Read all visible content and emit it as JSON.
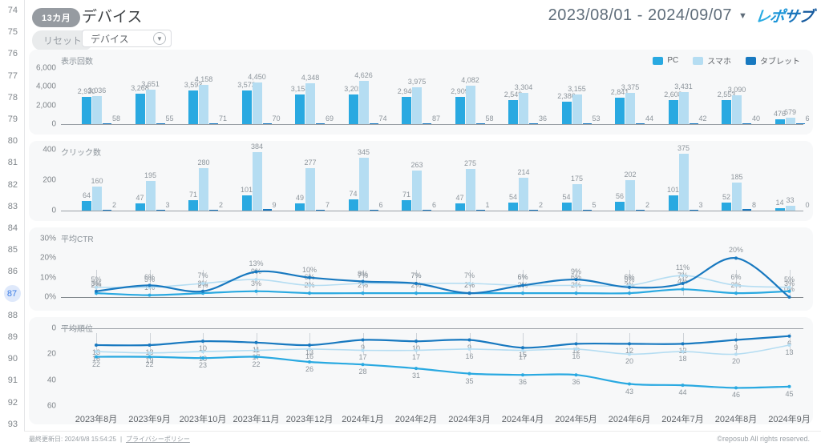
{
  "sidebar": {
    "numbers": [
      "74",
      "75",
      "76",
      "77",
      "78",
      "79",
      "80",
      "81",
      "82",
      "83",
      "84",
      "85",
      "86",
      "87",
      "88",
      "89",
      "90",
      "91",
      "92",
      "93"
    ],
    "active_number": "87"
  },
  "header": {
    "badge": "13カ月",
    "title": "デバイス",
    "date_range": "2023/08/01 - 2024/09/07",
    "logo": "レポサブ"
  },
  "toolbar": {
    "reset_label": "リセット",
    "filter_value": "デバイス"
  },
  "months": [
    "2023年8月",
    "2023年9月",
    "2023年10月",
    "2023年11月",
    "2023年12月",
    "2024年1月",
    "2024年2月",
    "2024年3月",
    "2024年4月",
    "2024年5月",
    "2024年6月",
    "2024年7月",
    "2024年8月",
    "2024年9月"
  ],
  "chart_data": [
    {
      "type": "bar",
      "title": "表示回数",
      "ylim": [
        0,
        6000
      ],
      "yticks": [
        "6,000",
        "4,000",
        "2,000",
        "0"
      ],
      "legend": [
        "PC",
        "スマホ",
        "タブレット"
      ],
      "value_format": "comma",
      "series": [
        {
          "name": "PC",
          "color": "#29a9e1",
          "values": [
            2930,
            3268,
            3593,
            3573,
            3158,
            3201,
            2940,
            2909,
            2549,
            2386,
            2841,
            2608,
            2553,
            476
          ]
        },
        {
          "name": "スマホ",
          "color": "#b5ddf2",
          "values": [
            3036,
            3651,
            4158,
            4450,
            4348,
            4626,
            3975,
            4082,
            3304,
            3155,
            3375,
            3431,
            3090,
            679
          ]
        },
        {
          "name": "タブレット",
          "color": "#1879c0",
          "values": [
            58,
            55,
            71,
            70,
            69,
            74,
            87,
            58,
            36,
            53,
            44,
            42,
            40,
            6
          ]
        }
      ]
    },
    {
      "type": "bar",
      "title": "クリック数",
      "ylim": [
        0,
        400
      ],
      "yticks": [
        "400",
        "200",
        "0"
      ],
      "value_format": "plain",
      "series": [
        {
          "name": "PC",
          "color": "#29a9e1",
          "values": [
            64,
            47,
            71,
            101,
            49,
            74,
            71,
            47,
            54,
            54,
            56,
            101,
            52,
            14
          ]
        },
        {
          "name": "スマホ",
          "color": "#b5ddf2",
          "values": [
            160,
            195,
            280,
            384,
            277,
            345,
            263,
            275,
            214,
            175,
            202,
            375,
            185,
            33
          ]
        },
        {
          "name": "タブレット",
          "color": "#1879c0",
          "values": [
            2,
            3,
            2,
            9,
            7,
            6,
            6,
            1,
            2,
            5,
            2,
            3,
            8,
            0
          ]
        }
      ]
    },
    {
      "type": "line",
      "title": "平均CTR",
      "ylim": [
        0,
        30
      ],
      "yticks": [
        "30%",
        "20%",
        "10%",
        "0%"
      ],
      "value_suffix": "%",
      "label_position": "above",
      "series": [
        {
          "name": "スマホ",
          "color": "#b5ddf2",
          "values": [
            5,
            5,
            7,
            9,
            6,
            7,
            7,
            7,
            6,
            6,
            6,
            11,
            6,
            5
          ]
        },
        {
          "name": "PC",
          "color": "#29a9e1",
          "values": [
            2,
            1,
            2,
            3,
            2,
            2,
            2,
            2,
            2,
            2,
            2,
            4,
            2,
            3
          ]
        },
        {
          "name": "タブレット",
          "color": "#1879c0",
          "values": [
            3,
            6,
            3,
            13,
            10,
            8,
            7,
            2,
            6,
            9,
            5,
            7,
            20,
            0
          ]
        }
      ]
    },
    {
      "type": "line",
      "title": "平均順位",
      "inverted": true,
      "ylim": [
        0,
        60
      ],
      "yticks": [
        "0",
        "20",
        "40",
        "60"
      ],
      "label_position": "below",
      "show_months": true,
      "series": [
        {
          "name": "スマホ",
          "color": "#b5ddf2",
          "values": [
            18,
            19,
            18,
            17,
            16,
            17,
            17,
            16,
            17,
            16,
            20,
            18,
            20,
            13
          ]
        },
        {
          "name": "PC",
          "color": "#29a9e1",
          "values": [
            22,
            22,
            23,
            22,
            26,
            28,
            31,
            35,
            36,
            36,
            43,
            44,
            46,
            45
          ]
        },
        {
          "name": "タブレット",
          "color": "#1879c0",
          "values": [
            13,
            13,
            10,
            11,
            13,
            9,
            10,
            9,
            15,
            12,
            12,
            12,
            9,
            6
          ]
        }
      ]
    }
  ],
  "footer": {
    "updated": "最終更新日: 2024/9/8 15:54:25",
    "separator": "|",
    "privacy": "プライバシーポリシー",
    "copyright": "©reposub All rights reserved."
  },
  "colors": {
    "pc": "#29a9e1",
    "smartphone": "#b5ddf2",
    "tablet": "#1879c0",
    "active_row": "#3d7de4"
  }
}
